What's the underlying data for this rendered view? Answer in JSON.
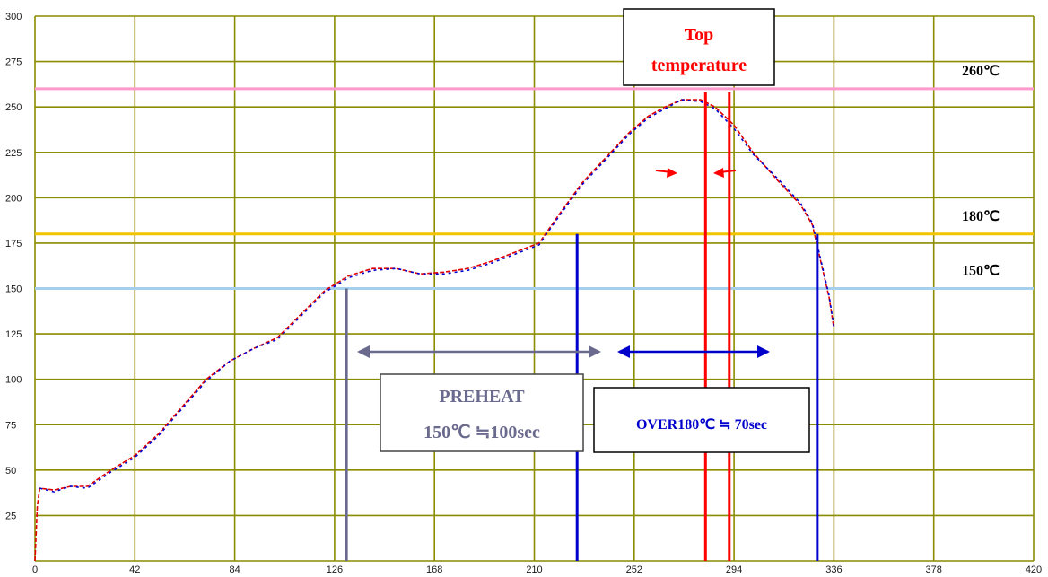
{
  "chart_data": {
    "type": "line",
    "title": "",
    "xlabel": "",
    "ylabel": "",
    "xlim": [
      0,
      420
    ],
    "ylim": [
      0,
      300
    ],
    "x_ticks": [
      "0",
      "42",
      "84",
      "126",
      "168",
      "210",
      "252",
      "294",
      "336",
      "378",
      "420"
    ],
    "y_ticks": [
      "25",
      "50",
      "75",
      "100",
      "125",
      "150",
      "175",
      "200",
      "225",
      "250",
      "275",
      "300"
    ],
    "grid": true,
    "grid_color": "#8c8c00",
    "series": [
      {
        "color": "#e00000",
        "points": [
          [
            0,
            0
          ],
          [
            1,
            30
          ],
          [
            2,
            40
          ],
          [
            8,
            39
          ],
          [
            15,
            41
          ],
          [
            22,
            41
          ],
          [
            32,
            50
          ],
          [
            42,
            58
          ],
          [
            52,
            70
          ],
          [
            62,
            85
          ],
          [
            72,
            100
          ],
          [
            82,
            110
          ],
          [
            92,
            117
          ],
          [
            102,
            123
          ],
          [
            112,
            136
          ],
          [
            122,
            149
          ],
          [
            132,
            157
          ],
          [
            142,
            161
          ],
          [
            152,
            161
          ],
          [
            162,
            158
          ],
          [
            172,
            159
          ],
          [
            182,
            161
          ],
          [
            192,
            165
          ],
          [
            202,
            170
          ],
          [
            212,
            175
          ],
          [
            220,
            190
          ],
          [
            230,
            208
          ],
          [
            240,
            222
          ],
          [
            250,
            236
          ],
          [
            258,
            245
          ],
          [
            265,
            250
          ],
          [
            272,
            254
          ],
          [
            280,
            254
          ],
          [
            286,
            250
          ],
          [
            294,
            240
          ],
          [
            302,
            225
          ],
          [
            312,
            210
          ],
          [
            322,
            196
          ],
          [
            327,
            185
          ],
          [
            331,
            162
          ],
          [
            334,
            145
          ],
          [
            336,
            128
          ]
        ]
      },
      {
        "color": "#0000d0",
        "points": [
          [
            2,
            40
          ],
          [
            8,
            38
          ],
          [
            15,
            41
          ],
          [
            22,
            40
          ],
          [
            32,
            49
          ],
          [
            42,
            57
          ],
          [
            52,
            69
          ],
          [
            62,
            84
          ],
          [
            72,
            99
          ],
          [
            82,
            110
          ],
          [
            92,
            117
          ],
          [
            102,
            122
          ],
          [
            112,
            135
          ],
          [
            122,
            148
          ],
          [
            132,
            156
          ],
          [
            142,
            160
          ],
          [
            152,
            161
          ],
          [
            162,
            158
          ],
          [
            172,
            158
          ],
          [
            182,
            160
          ],
          [
            192,
            164
          ],
          [
            202,
            169
          ],
          [
            212,
            174
          ],
          [
            220,
            189
          ],
          [
            230,
            207
          ],
          [
            240,
            221
          ],
          [
            250,
            235
          ],
          [
            258,
            244
          ],
          [
            265,
            249
          ],
          [
            272,
            254
          ],
          [
            280,
            253
          ],
          [
            286,
            249
          ],
          [
            294,
            238
          ],
          [
            302,
            224
          ],
          [
            312,
            211
          ],
          [
            322,
            197
          ],
          [
            327,
            186
          ],
          [
            331,
            163
          ],
          [
            334,
            146
          ],
          [
            336,
            129
          ]
        ]
      }
    ],
    "reference_lines": [
      {
        "value": 260,
        "label": "260℃",
        "color": "#ff99cc"
      },
      {
        "value": 180,
        "label": "180℃",
        "color": "#f2c400"
      },
      {
        "value": 150,
        "label": "150℃",
        "color": "#a6cfee"
      }
    ],
    "vertical_markers": [
      {
        "x": 131,
        "from": 0,
        "to": 150,
        "color": "#6a6a8e"
      },
      {
        "x": 228,
        "from": 0,
        "to": 180,
        "color": "#0000cc"
      },
      {
        "x": 329,
        "from": 0,
        "to": 180,
        "color": "#0000cc"
      },
      {
        "x": 282,
        "from": 0,
        "to": 258,
        "color": "#ff0000"
      },
      {
        "x": 292,
        "from": 0,
        "to": 258,
        "color": "#ff0000"
      }
    ],
    "annotations": {
      "top_temperature": {
        "line1": "Top",
        "line2": "temperature",
        "color": "#ff0000"
      },
      "preheat": {
        "line1": "PREHEAT",
        "line2": "150℃ ≒100sec",
        "color": "#6a6a8e"
      },
      "over180": {
        "text": "OVER180℃ ≒ 70sec",
        "color": "#0000cc"
      }
    }
  }
}
